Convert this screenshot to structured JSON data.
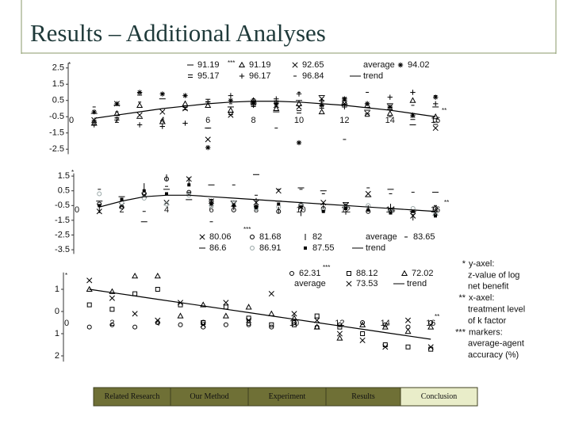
{
  "title": "Results – Additional Analyses",
  "chart_data": [
    {
      "type": "scatter",
      "legend_heading": "average",
      "annotations": [
        "*",
        "**",
        "***"
      ],
      "x": [
        1,
        2,
        3,
        4,
        5,
        6,
        7,
        8,
        9,
        10,
        11,
        12,
        13,
        14,
        15,
        16
      ],
      "xlim": [
        -1,
        17
      ],
      "xticks": [
        0,
        2,
        4,
        6,
        8,
        10,
        12,
        14,
        16
      ],
      "ylim": [
        -3,
        3
      ],
      "yticks": [
        2.5,
        1.5,
        0.5,
        -0.5,
        -1.5,
        -2.5
      ],
      "series": [
        {
          "name": "91.19",
          "marker": "dash",
          "color": "#000",
          "values": [
            -0.3,
            0.2,
            -0.6,
            0.6,
            null,
            -1.2,
            0.1,
            0.3,
            -0.2,
            0.5,
            0.8,
            0.2,
            -0.1,
            0.3,
            -1.0,
            0.1
          ]
        },
        {
          "name": "95.17",
          "marker": "equals",
          "color": "#000",
          "values": [
            -0.8,
            -0.5,
            0.9,
            null,
            0.0,
            0.5,
            -0.3,
            0.2,
            0.4,
            -0.2,
            0.1,
            0.6,
            -0.4,
            0.0,
            -0.6,
            -0.9
          ]
        },
        {
          "name": "91.19",
          "marker": "triangle",
          "color": "#000",
          "values": [
            -0.9,
            -0.3,
            0.2,
            -0.8,
            0.3,
            0.2,
            -0.1,
            0.5,
            0.0,
            0.3,
            -0.2,
            0.4,
            0.2,
            -0.3,
            0.5,
            -0.5
          ]
        },
        {
          "name": "96.17",
          "marker": "plus",
          "color": "#000",
          "values": [
            -1.0,
            -0.7,
            -1.0,
            -1.1,
            -0.9,
            0.4,
            0.8,
            0.2,
            0.6,
            0.9,
            0.5,
            0.1,
            0.3,
            0.7,
            1.0,
            0.3
          ]
        },
        {
          "name": "92.65",
          "marker": "x",
          "color": "#000",
          "values": [
            -0.7,
            0.3,
            -0.4,
            -0.2,
            0.0,
            -1.9,
            -0.4,
            0.4,
            0.2,
            0.1,
            0.6,
            0.3,
            -0.3,
            0.1,
            null,
            -1.2
          ]
        },
        {
          "name": "96.84",
          "marker": "minus",
          "color": "#000",
          "values": [
            0.1,
            -0.2,
            0.4,
            0.9,
            -0.9,
            -1.2,
            0.3,
            0.6,
            -1.2,
            1.0,
            0.4,
            -1.9,
            1.0,
            -0.5,
            0.2,
            0.8
          ]
        },
        {
          "name": "trend",
          "marker": "line",
          "color": "#000",
          "values": [
            -0.6,
            -0.4,
            -0.2,
            0,
            0.15,
            0.3,
            0.4,
            0.45,
            0.45,
            0.4,
            0.3,
            0.2,
            0.05,
            -0.1,
            -0.3,
            -0.5
          ]
        },
        {
          "name": "94.02",
          "marker": "star",
          "color": "#000",
          "values": [
            -0.2,
            0.3,
            1.0,
            0.9,
            0.8,
            -2.4,
            0.5,
            0.4,
            0.3,
            -2.1,
            0.2,
            0.6,
            0.3,
            0.1,
            -0.4,
            0.7
          ]
        }
      ]
    },
    {
      "type": "scatter",
      "legend_heading": "average",
      "annotations": [
        "*",
        "**",
        "***"
      ],
      "x": [
        1,
        2,
        3,
        4,
        5,
        6,
        7,
        8,
        9,
        10,
        11,
        12,
        13,
        14,
        15,
        16
      ],
      "xlim": [
        -1,
        17
      ],
      "xticks": [
        0,
        2,
        4,
        6,
        8,
        10,
        12,
        14,
        16
      ],
      "ylim": [
        -4,
        1.9
      ],
      "yticks": [
        1.5,
        0.5,
        -0.5,
        -1.5,
        -2.5,
        -3.5
      ],
      "series": [
        {
          "name": "80.06",
          "marker": "x",
          "color": "#000",
          "values": [
            -0.9,
            -0.5,
            0.2,
            -0.3,
            1.3,
            -0.2,
            -0.4,
            -0.3,
            0.5,
            -0.6,
            -0.3,
            -0.5,
            0.3,
            -0.8,
            -1.2,
            -1.0
          ]
        },
        {
          "name": "86.6",
          "marker": "dash",
          "color": "#000",
          "values": [
            -0.2,
            0.1,
            -1.6,
            0.6,
            -0.1,
            0.9,
            -0.2,
            1.6,
            -0.2,
            0.7,
            0.5,
            -0.3,
            0.1,
            0.6,
            -0.9,
            0.4
          ]
        },
        {
          "name": "81.68",
          "marker": "circle",
          "color": "#000",
          "values": [
            -0.4,
            -0.6,
            0.3,
            1.3,
            0.4,
            -0.2,
            -0.8,
            -0.6,
            -0.9,
            -0.5,
            -0.7,
            -0.6,
            -0.9,
            -0.8,
            -1.0,
            -0.7
          ]
        },
        {
          "name": "86.91",
          "marker": "circle",
          "color": "#9aa8a8",
          "values": [
            0.3,
            -0.3,
            0.0,
            -0.4,
            0.2,
            -0.5,
            -0.3,
            -0.7,
            -0.6,
            -0.4,
            -0.8,
            -0.6,
            -0.5,
            -0.9,
            -0.7,
            -1.1
          ]
        },
        {
          "name": "82",
          "marker": "bar",
          "color": "#000",
          "values": [
            -0.8,
            null,
            0.8,
            1.4,
            1.2,
            -0.3,
            -0.6,
            -0.2,
            -0.8,
            -1.0,
            -0.5,
            -0.9,
            -0.7,
            -0.6,
            -1.3,
            -0.8
          ]
        },
        {
          "name": "87.55",
          "marker": "dot",
          "color": "#000",
          "values": [
            -0.5,
            -0.1,
            0.5,
            0.3,
            0.9,
            -0.4,
            -0.5,
            -0.6,
            -0.4,
            -0.6,
            -0.9,
            -0.7,
            -0.8,
            -1.0,
            -0.9,
            -1.2
          ]
        },
        {
          "name": "trend",
          "marker": "line",
          "color": "#000",
          "values": [
            -0.6,
            -0.2,
            0.1,
            0.2,
            0.2,
            0.1,
            0.0,
            -0.1,
            -0.2,
            -0.3,
            -0.4,
            -0.5,
            -0.6,
            -0.7,
            -0.8,
            -0.9
          ]
        },
        {
          "name": "83.65",
          "marker": "minus",
          "color": "#000",
          "values": [
            0.6,
            0.0,
            -0.9,
            0.8,
            0.4,
            -1.6,
            0.9,
            0.2,
            0.6,
            0.6,
            0.3,
            -0.4,
            0.7,
            0.3,
            0.4,
            -0.5
          ]
        }
      ]
    },
    {
      "type": "scatter",
      "legend_heading": "average",
      "annotations": [
        "*",
        "**",
        "***"
      ],
      "x": [
        1,
        2,
        3,
        4,
        5,
        6,
        7,
        8,
        9,
        10,
        11,
        12,
        13,
        14,
        15,
        16
      ],
      "xlim": [
        -0.5,
        17
      ],
      "xticks": [
        0,
        2,
        4,
        6,
        8,
        10,
        12,
        14,
        16
      ],
      "ylim": [
        -2.4,
        1.9
      ],
      "yticks": [
        1,
        0,
        {
          "value": -1,
          "label": "1"
        },
        {
          "value": -2,
          "label": "2"
        }
      ],
      "series": [
        {
          "name": "62.31",
          "marker": "circle",
          "color": "#000",
          "values": [
            -0.7,
            -0.6,
            -0.7,
            -0.5,
            -0.6,
            -0.7,
            -0.6,
            -0.6,
            -0.7,
            -0.5,
            -0.7,
            -0.6,
            -0.5,
            -0.6,
            -0.7,
            -0.5
          ]
        },
        {
          "name": "88.12",
          "marker": "square",
          "color": "#000",
          "values": [
            0.3,
            0.1,
            0.8,
            1.0,
            0.3,
            -0.5,
            0.2,
            -0.3,
            -0.6,
            -0.6,
            -0.2,
            -0.7,
            -1.0,
            -1.5,
            -1.6,
            -1.7
          ]
        },
        {
          "name": "73.53",
          "marker": "x",
          "color": "#000",
          "values": [
            1.4,
            0.6,
            -0.1,
            -0.4,
            0.4,
            -0.6,
            0.4,
            -0.4,
            0.8,
            -0.1,
            -0.4,
            -1.0,
            -1.3,
            -1.6,
            -0.4,
            -1.6
          ]
        },
        {
          "name": "72.02",
          "marker": "triangle",
          "color": "#000",
          "values": [
            1.0,
            0.9,
            1.6,
            1.6,
            -0.2,
            0.3,
            -0.2,
            0.2,
            -0.1,
            -0.3,
            -0.7,
            -1.2,
            -0.6,
            -0.7,
            -0.9,
            -0.7
          ]
        },
        {
          "name": "trend",
          "marker": "line",
          "color": "#000",
          "values": [
            1.0,
            0.85,
            0.7,
            0.55,
            0.4,
            0.25,
            0.1,
            -0.05,
            -0.2,
            -0.35,
            -0.5,
            -0.65,
            -0.8,
            -0.95,
            -1.1,
            -1.25
          ]
        }
      ]
    }
  ],
  "notes": [
    {
      "mark": "*",
      "lines": [
        "y-axel:",
        "z-value of log",
        "net benefit"
      ]
    },
    {
      "mark": "**",
      "lines": [
        "x-axel:",
        "treatment level",
        "of k factor"
      ]
    },
    {
      "mark": "***",
      "lines": [
        "markers:",
        "average-agent",
        "accuracy (%)"
      ]
    }
  ],
  "nav": [
    "Related Research",
    "Our Method",
    "Experiment",
    "Results",
    "Conclusion"
  ]
}
